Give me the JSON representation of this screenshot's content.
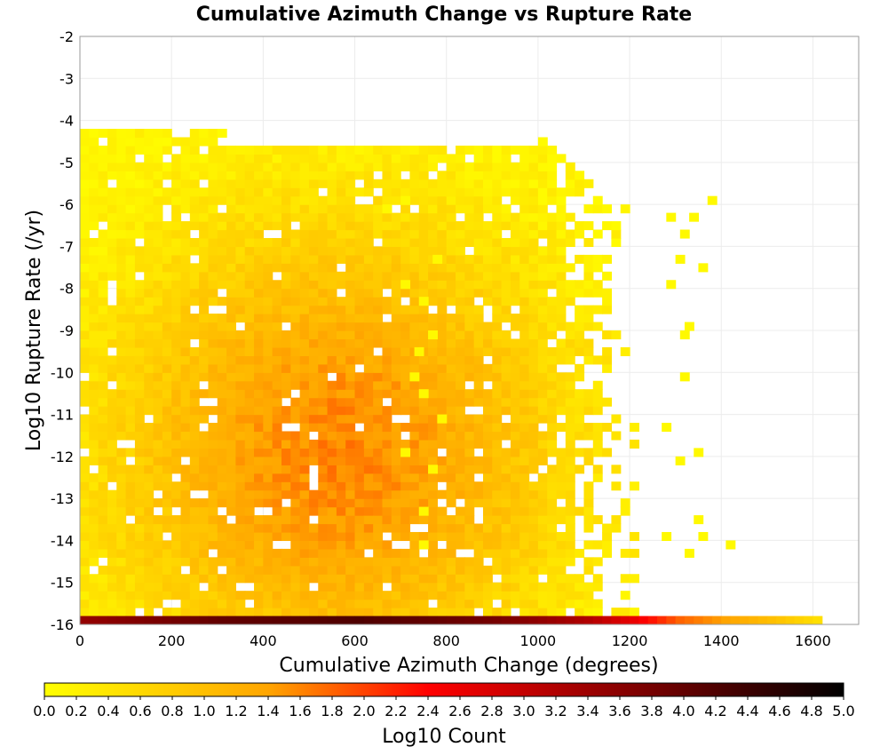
{
  "chart_data": {
    "type": "heatmap",
    "title": "Cumulative Azimuth Change vs Rupture Rate",
    "xlabel": "Cumulative Azimuth Change (degrees)",
    "ylabel": "Log10 Rupture Rate (/yr)",
    "xlim": [
      0,
      1700
    ],
    "ylim": [
      -16,
      -2
    ],
    "xticks": [
      0,
      200,
      400,
      600,
      800,
      1000,
      1200,
      1400,
      1600
    ],
    "yticks": [
      -2,
      -3,
      -4,
      -5,
      -6,
      -7,
      -8,
      -9,
      -10,
      -11,
      -12,
      -13,
      -14,
      -15,
      -16
    ],
    "grid": true,
    "bin_size": {
      "x": 20,
      "y": 0.2
    },
    "colorbar": {
      "label": "Log10 Count",
      "placement": "bottom",
      "range": [
        0.0,
        5.0
      ],
      "ticks": [
        "0.0",
        "0.2",
        "0.4",
        "0.6",
        "0.8",
        "1.0",
        "1.2",
        "1.4",
        "1.6",
        "1.8",
        "2.0",
        "2.2",
        "2.4",
        "2.6",
        "2.8",
        "3.0",
        "3.2",
        "3.4",
        "3.6",
        "3.8",
        "4.0",
        "4.2",
        "4.4",
        "4.6",
        "4.8",
        "5.0"
      ],
      "colors": [
        "#ffff00",
        "#ffa500",
        "#ff0000",
        "#000000"
      ]
    },
    "density_core": {
      "x_range": [
        0,
        1100
      ],
      "y_range": [
        -16,
        -4
      ],
      "log10_count_peak": 1.6,
      "peak_x": 550,
      "peak_y": -12
    },
    "bottom_row": {
      "y": -16,
      "x": [
        0,
        300,
        600,
        900,
        1100,
        1200,
        1250,
        1300,
        1400,
        1500,
        1600
      ],
      "log10_count": [
        3.5,
        4.0,
        4.2,
        3.8,
        3.2,
        2.6,
        2.2,
        1.8,
        1.4,
        1.0,
        0.5
      ]
    },
    "sparse_points": [
      {
        "x": 770,
        "y": -7.4,
        "value": 0.1
      },
      {
        "x": 700,
        "y": -6.0,
        "value": 0.1
      },
      {
        "x": 660,
        "y": -6.2,
        "value": 0.1
      },
      {
        "x": 700,
        "y": -8.0,
        "value": 0.1
      },
      {
        "x": 740,
        "y": -8.4,
        "value": 0.1
      },
      {
        "x": 730,
        "y": -9.6,
        "value": 0.1
      },
      {
        "x": 760,
        "y": -9.2,
        "value": 0.1
      },
      {
        "x": 720,
        "y": -10.2,
        "value": 0.1
      },
      {
        "x": 740,
        "y": -10.6,
        "value": 0.1
      },
      {
        "x": 780,
        "y": -11.2,
        "value": 0.1
      },
      {
        "x": 700,
        "y": -12.0,
        "value": 0.1
      },
      {
        "x": 760,
        "y": -12.4,
        "value": 0.1
      },
      {
        "x": 740,
        "y": -13.4,
        "value": 0.1
      },
      {
        "x": 740,
        "y": -14.2,
        "value": 0.1
      },
      {
        "x": 1410,
        "y": -14.2,
        "value": 0.1
      },
      {
        "x": 1350,
        "y": -14.0,
        "value": 0.1
      },
      {
        "x": 1340,
        "y": -12.0,
        "value": 0.1
      },
      {
        "x": 1300,
        "y": -12.2,
        "value": 0.1
      },
      {
        "x": 1270,
        "y": -11.4,
        "value": 0.1
      },
      {
        "x": 1310,
        "y": -10.2,
        "value": 0.1
      },
      {
        "x": 1310,
        "y": -9.2,
        "value": 0.1
      },
      {
        "x": 1320,
        "y": -9.0,
        "value": 0.1
      },
      {
        "x": 1280,
        "y": -8.0,
        "value": 0.1
      },
      {
        "x": 1300,
        "y": -7.4,
        "value": 0.1
      },
      {
        "x": 1350,
        "y": -7.6,
        "value": 0.1
      },
      {
        "x": 1330,
        "y": -6.4,
        "value": 0.1
      },
      {
        "x": 1370,
        "y": -6.0,
        "value": 0.1
      },
      {
        "x": 1310,
        "y": -6.8,
        "value": 0.1
      },
      {
        "x": 1280,
        "y": -6.4,
        "value": 0.1
      },
      {
        "x": 1340,
        "y": -13.6,
        "value": 0.1
      },
      {
        "x": 1270,
        "y": -14.0,
        "value": 0.1
      },
      {
        "x": 1320,
        "y": -14.4,
        "value": 0.1
      }
    ]
  }
}
